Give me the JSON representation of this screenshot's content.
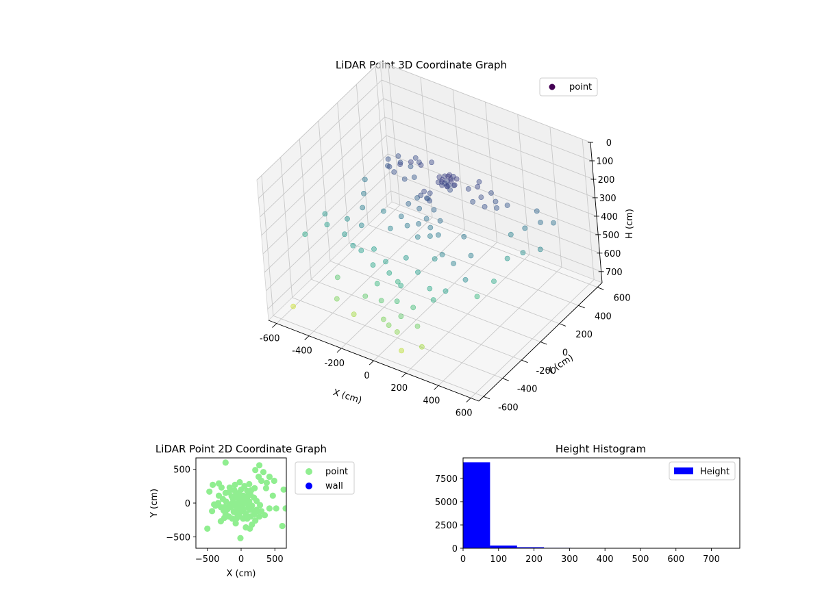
{
  "chart_data": [
    {
      "type": "scatter3d",
      "title": "LiDAR Point 3D Coordinate Graph",
      "xlabel": "X (cm)",
      "ylabel": "Y (cm)",
      "zlabel": "H (cm)",
      "xlim": [
        -650,
        650
      ],
      "ylim": [
        -650,
        650
      ],
      "zlim": [
        0,
        760
      ],
      "z_inverted": true,
      "xticks": [
        "-600",
        "-400",
        "-200",
        "0",
        "200",
        "400",
        "600"
      ],
      "yticks": [
        "-600",
        "-400",
        "-200",
        "0",
        "200",
        "400",
        "600"
      ],
      "zticks": [
        "0",
        "100",
        "200",
        "300",
        "400",
        "500",
        "600",
        "700"
      ],
      "grid": true,
      "legend": {
        "position": "top-right",
        "entries": [
          {
            "label": "point",
            "color": "#440154"
          }
        ]
      },
      "colormap": "viridis",
      "series": [
        {
          "name": "point",
          "points": [
            [
              30,
              120,
              150
            ],
            [
              50,
              150,
              140
            ],
            [
              70,
              100,
              160
            ],
            [
              40,
              180,
              150
            ],
            [
              20,
              130,
              170
            ],
            [
              60,
              160,
              155
            ],
            [
              80,
              130,
              145
            ],
            [
              10,
              110,
              165
            ],
            [
              90,
              170,
              150
            ],
            [
              45,
              90,
              160
            ],
            [
              55,
              140,
              180
            ],
            [
              35,
              160,
              175
            ],
            [
              75,
              120,
              190
            ],
            [
              25,
              150,
              185
            ],
            [
              65,
              110,
              170
            ],
            [
              15,
              170,
              160
            ],
            [
              85,
              145,
              175
            ],
            [
              0,
              140,
              155
            ],
            [
              100,
              130,
              160
            ],
            [
              50,
              200,
              165
            ],
            [
              -150,
              200,
              170
            ],
            [
              -200,
              180,
              160
            ],
            [
              -250,
              150,
              175
            ],
            [
              -180,
              230,
              180
            ],
            [
              -300,
              120,
              190
            ],
            [
              -220,
              260,
              185
            ],
            [
              -120,
              260,
              175
            ],
            [
              -280,
              200,
              200
            ],
            [
              -330,
              150,
              210
            ],
            [
              -260,
              100,
              195
            ],
            [
              -190,
              90,
              205
            ],
            [
              -310,
              230,
              190
            ],
            [
              -350,
              190,
              200
            ],
            [
              -160,
              140,
              210
            ],
            [
              -230,
              220,
              215
            ],
            [
              200,
              200,
              170
            ],
            [
              250,
              150,
              185
            ],
            [
              300,
              100,
              195
            ],
            [
              180,
              250,
              175
            ],
            [
              320,
              180,
              200
            ],
            [
              270,
              220,
              190
            ],
            [
              350,
              140,
              205
            ],
            [
              220,
              110,
              200
            ],
            [
              380,
              200,
              210
            ],
            [
              160,
              170,
              180
            ],
            [
              -80,
              30,
              240
            ],
            [
              -40,
              -20,
              260
            ],
            [
              20,
              -50,
              280
            ],
            [
              -100,
              -30,
              250
            ],
            [
              60,
              -80,
              300
            ],
            [
              0,
              -100,
              290
            ],
            [
              -60,
              -120,
              310
            ],
            [
              40,
              0,
              250
            ],
            [
              100,
              -40,
              270
            ],
            [
              -20,
              40,
              230
            ],
            [
              80,
              -120,
              320
            ],
            [
              -120,
              -80,
              300
            ],
            [
              20,
              -150,
              330
            ],
            [
              120,
              -100,
              310
            ],
            [
              -150,
              -150,
              340
            ],
            [
              -350,
              -100,
              320
            ],
            [
              -400,
              0,
              310
            ],
            [
              -300,
              -200,
              350
            ],
            [
              -250,
              -50,
              330
            ],
            [
              -450,
              100,
              300
            ],
            [
              300,
              -250,
              330
            ],
            [
              350,
              -150,
              320
            ],
            [
              250,
              -50,
              300
            ],
            [
              400,
              -300,
              360
            ],
            [
              200,
              -200,
              340
            ],
            [
              -380,
              -250,
              400
            ],
            [
              -420,
              -150,
              380
            ],
            [
              -300,
              -300,
              410
            ],
            [
              -200,
              -250,
              420
            ],
            [
              -100,
              -300,
              430
            ],
            [
              0,
              -250,
              400
            ],
            [
              100,
              -300,
              420
            ],
            [
              200,
              -350,
              450
            ],
            [
              300,
              -350,
              430
            ],
            [
              150,
              -200,
              380
            ],
            [
              -50,
              -350,
              450
            ],
            [
              250,
              -400,
              470
            ],
            [
              -150,
              -350,
              440
            ],
            [
              50,
              -400,
              460
            ],
            [
              -250,
              -300,
              420
            ],
            [
              500,
              300,
              250
            ],
            [
              550,
              250,
              270
            ],
            [
              480,
              200,
              300
            ],
            [
              420,
              150,
              330
            ],
            [
              600,
              150,
              350
            ],
            [
              520,
              100,
              370
            ],
            [
              450,
              50,
              400
            ],
            [
              600,
              300,
              280
            ],
            [
              -600,
              -300,
              450
            ],
            [
              -560,
              -150,
              400
            ],
            [
              -520,
              -200,
              420
            ],
            [
              -100,
              -400,
              500
            ],
            [
              50,
              -450,
              520
            ],
            [
              150,
              -450,
              520
            ],
            [
              0,
              -350,
              480
            ],
            [
              -50,
              -450,
              550
            ],
            [
              100,
              -500,
              560
            ],
            [
              200,
              -500,
              580
            ],
            [
              -150,
              -450,
              560
            ],
            [
              50,
              -550,
              600
            ],
            [
              0,
              -520,
              600
            ],
            [
              100,
              -550,
              620
            ],
            [
              150,
              -600,
              680
            ],
            [
              250,
              -550,
              650
            ],
            [
              -300,
              -500,
              600
            ],
            [
              -550,
              -550,
              700
            ],
            [
              -350,
              -400,
              550
            ],
            [
              400,
              -200,
              500
            ],
            [
              450,
              -100,
              450
            ],
            [
              -200,
              -500,
              650
            ],
            [
              0,
              0,
              200
            ],
            [
              10,
              20,
              180
            ],
            [
              -20,
              10,
              175
            ],
            [
              30,
              -20,
              195
            ],
            [
              -30,
              -10,
              190
            ]
          ]
        }
      ]
    },
    {
      "type": "scatter",
      "title": "LiDAR Point 2D Coordinate Graph",
      "xlabel": "X (cm)",
      "ylabel": "Y (cm)",
      "xlim": [
        -670,
        670
      ],
      "ylim": [
        -670,
        670
      ],
      "xticks": [
        "−500",
        "0",
        "500"
      ],
      "yticks": [
        "−500",
        "0",
        "500"
      ],
      "legend": {
        "position": "outside-right",
        "entries": [
          {
            "label": "point",
            "color": "#90ee90"
          },
          {
            "label": "wall",
            "color": "#0000ff"
          }
        ]
      },
      "series": [
        {
          "name": "point",
          "color": "#90ee90",
          "points": [
            [
              -230,
              600
            ],
            [
              270,
              560
            ],
            [
              210,
              490
            ],
            [
              330,
              460
            ],
            [
              420,
              390
            ],
            [
              490,
              330
            ],
            [
              380,
              300
            ],
            [
              300,
              330
            ],
            [
              260,
              390
            ],
            [
              370,
              220
            ],
            [
              470,
              110
            ],
            [
              630,
              200
            ],
            [
              660,
              -80
            ],
            [
              520,
              -80
            ],
            [
              420,
              -80
            ],
            [
              350,
              -180
            ],
            [
              270,
              -200
            ],
            [
              210,
              -260
            ],
            [
              160,
              -320
            ],
            [
              130,
              -380
            ],
            [
              -10,
              -520
            ],
            [
              70,
              -360
            ],
            [
              -80,
              -300
            ],
            [
              -250,
              -220
            ],
            [
              -300,
              -270
            ],
            [
              -500,
              -380
            ],
            [
              -430,
              -120
            ],
            [
              -400,
              -20
            ],
            [
              -470,
              170
            ],
            [
              -420,
              270
            ],
            [
              -330,
              290
            ],
            [
              -290,
              230
            ],
            [
              -230,
              150
            ],
            [
              -330,
              110
            ],
            [
              -170,
              230
            ],
            [
              -90,
              270
            ],
            [
              -20,
              310
            ],
            [
              50,
              250
            ],
            [
              120,
              280
            ],
            [
              200,
              220
            ],
            [
              90,
              180
            ],
            [
              140,
              120
            ],
            [
              190,
              80
            ],
            [
              230,
              30
            ],
            [
              280,
              -30
            ],
            [
              300,
              -120
            ],
            [
              610,
              -340
            ],
            [
              240,
              -120
            ],
            [
              -380,
              -40
            ],
            [
              -340,
              0
            ],
            [
              -300,
              -60
            ],
            [
              -260,
              -110
            ],
            [
              -230,
              -160
            ],
            [
              -180,
              -200
            ],
            [
              -130,
              -230
            ],
            [
              -70,
              -230
            ],
            [
              -20,
              -200
            ],
            [
              30,
              -230
            ],
            [
              90,
              -230
            ],
            [
              140,
              -200
            ],
            [
              190,
              -170
            ],
            [
              230,
              -100
            ],
            [
              -270,
              60
            ],
            [
              -220,
              20
            ],
            [
              -170,
              -20
            ],
            [
              -120,
              60
            ],
            [
              -80,
              120
            ],
            [
              -30,
              150
            ],
            [
              30,
              110
            ],
            [
              80,
              60
            ],
            [
              120,
              20
            ],
            [
              160,
              -40
            ],
            [
              190,
              -120
            ],
            [
              40,
              -90
            ],
            [
              -10,
              -130
            ],
            [
              -60,
              -80
            ],
            [
              -110,
              -130
            ],
            [
              -150,
              -60
            ],
            [
              -200,
              -90
            ],
            [
              -10,
              40
            ],
            [
              20,
              -20
            ],
            [
              -50,
              0
            ],
            [
              60,
              0
            ],
            [
              10,
              80
            ],
            [
              -40,
              70
            ],
            [
              100,
              100
            ],
            [
              -90,
              -30
            ],
            [
              130,
              -100
            ],
            [
              -140,
              100
            ],
            [
              -180,
              160
            ],
            [
              70,
              -160
            ],
            [
              -100,
              190
            ],
            [
              0,
              200
            ],
            [
              150,
              190
            ],
            [
              -250,
              -60
            ],
            [
              -60,
              -160
            ],
            [
              110,
              -60
            ],
            [
              -20,
              -60
            ],
            [
              40,
              40
            ],
            [
              -120,
              10
            ]
          ]
        },
        {
          "name": "wall",
          "color": "#0000ff",
          "points": []
        }
      ]
    },
    {
      "type": "bar",
      "title": "Height Histogram",
      "xlabel": "",
      "ylabel": "",
      "xlim": [
        0,
        780
      ],
      "ylim": [
        0,
        9700
      ],
      "xticks": [
        "0",
        "100",
        "200",
        "300",
        "400",
        "500",
        "600",
        "700"
      ],
      "yticks": [
        "0",
        "2500",
        "5000",
        "7500"
      ],
      "legend": {
        "position": "top-right",
        "entries": [
          {
            "label": "Height",
            "color": "#0000ff"
          }
        ]
      },
      "bin_edges": [
        0,
        76,
        152,
        228,
        304,
        380,
        456,
        532,
        608,
        684,
        760
      ],
      "series": [
        {
          "name": "Height",
          "color": "#0000ff",
          "values": [
            9230,
            290,
            110,
            45,
            25,
            15,
            10,
            8,
            5,
            3
          ]
        }
      ]
    }
  ]
}
